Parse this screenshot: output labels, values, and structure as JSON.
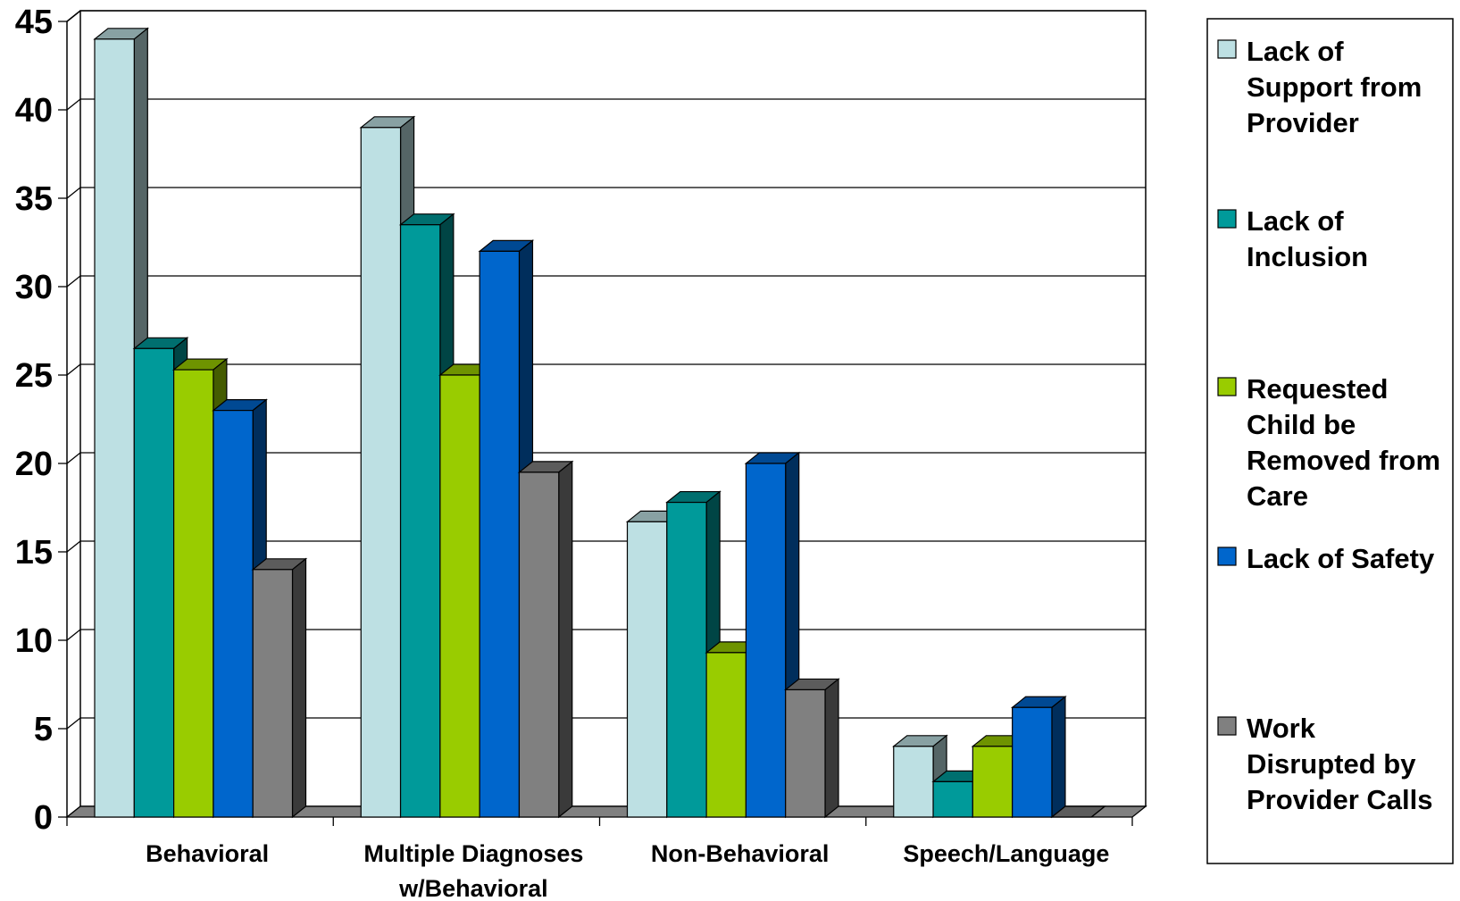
{
  "chart_data": {
    "type": "bar",
    "categories": [
      [
        "Behavioral"
      ],
      [
        "Multiple Diagnoses",
        "w/Behavioral"
      ],
      [
        "Non-Behavioral"
      ],
      [
        "Speech/Language"
      ]
    ],
    "series": [
      {
        "name": [
          "Lack of",
          "Support from",
          "Provider"
        ],
        "color": "#bde0e3",
        "values": [
          44,
          39,
          16.7,
          4
        ]
      },
      {
        "name": [
          "Lack of",
          "Inclusion"
        ],
        "color": "#009a9a",
        "values": [
          26.5,
          33.5,
          17.8,
          2
        ]
      },
      {
        "name": [
          "Requested",
          "Child be",
          "Removed from",
          "Care"
        ],
        "color": "#99cc00",
        "values": [
          25.3,
          25,
          9.3,
          4
        ]
      },
      {
        "name": [
          "Lack of Safety"
        ],
        "color": "#0066cc",
        "values": [
          23,
          32,
          20,
          6.2
        ]
      },
      {
        "name": [
          "Work",
          "Disrupted by",
          "Provider Calls"
        ],
        "color": "#808080",
        "values": [
          14,
          19.5,
          7.2,
          0
        ]
      }
    ],
    "ylim": [
      0,
      45
    ],
    "yticks": [
      0,
      5,
      10,
      15,
      20,
      25,
      30,
      35,
      40,
      45
    ],
    "grid": true,
    "legend": "right"
  }
}
